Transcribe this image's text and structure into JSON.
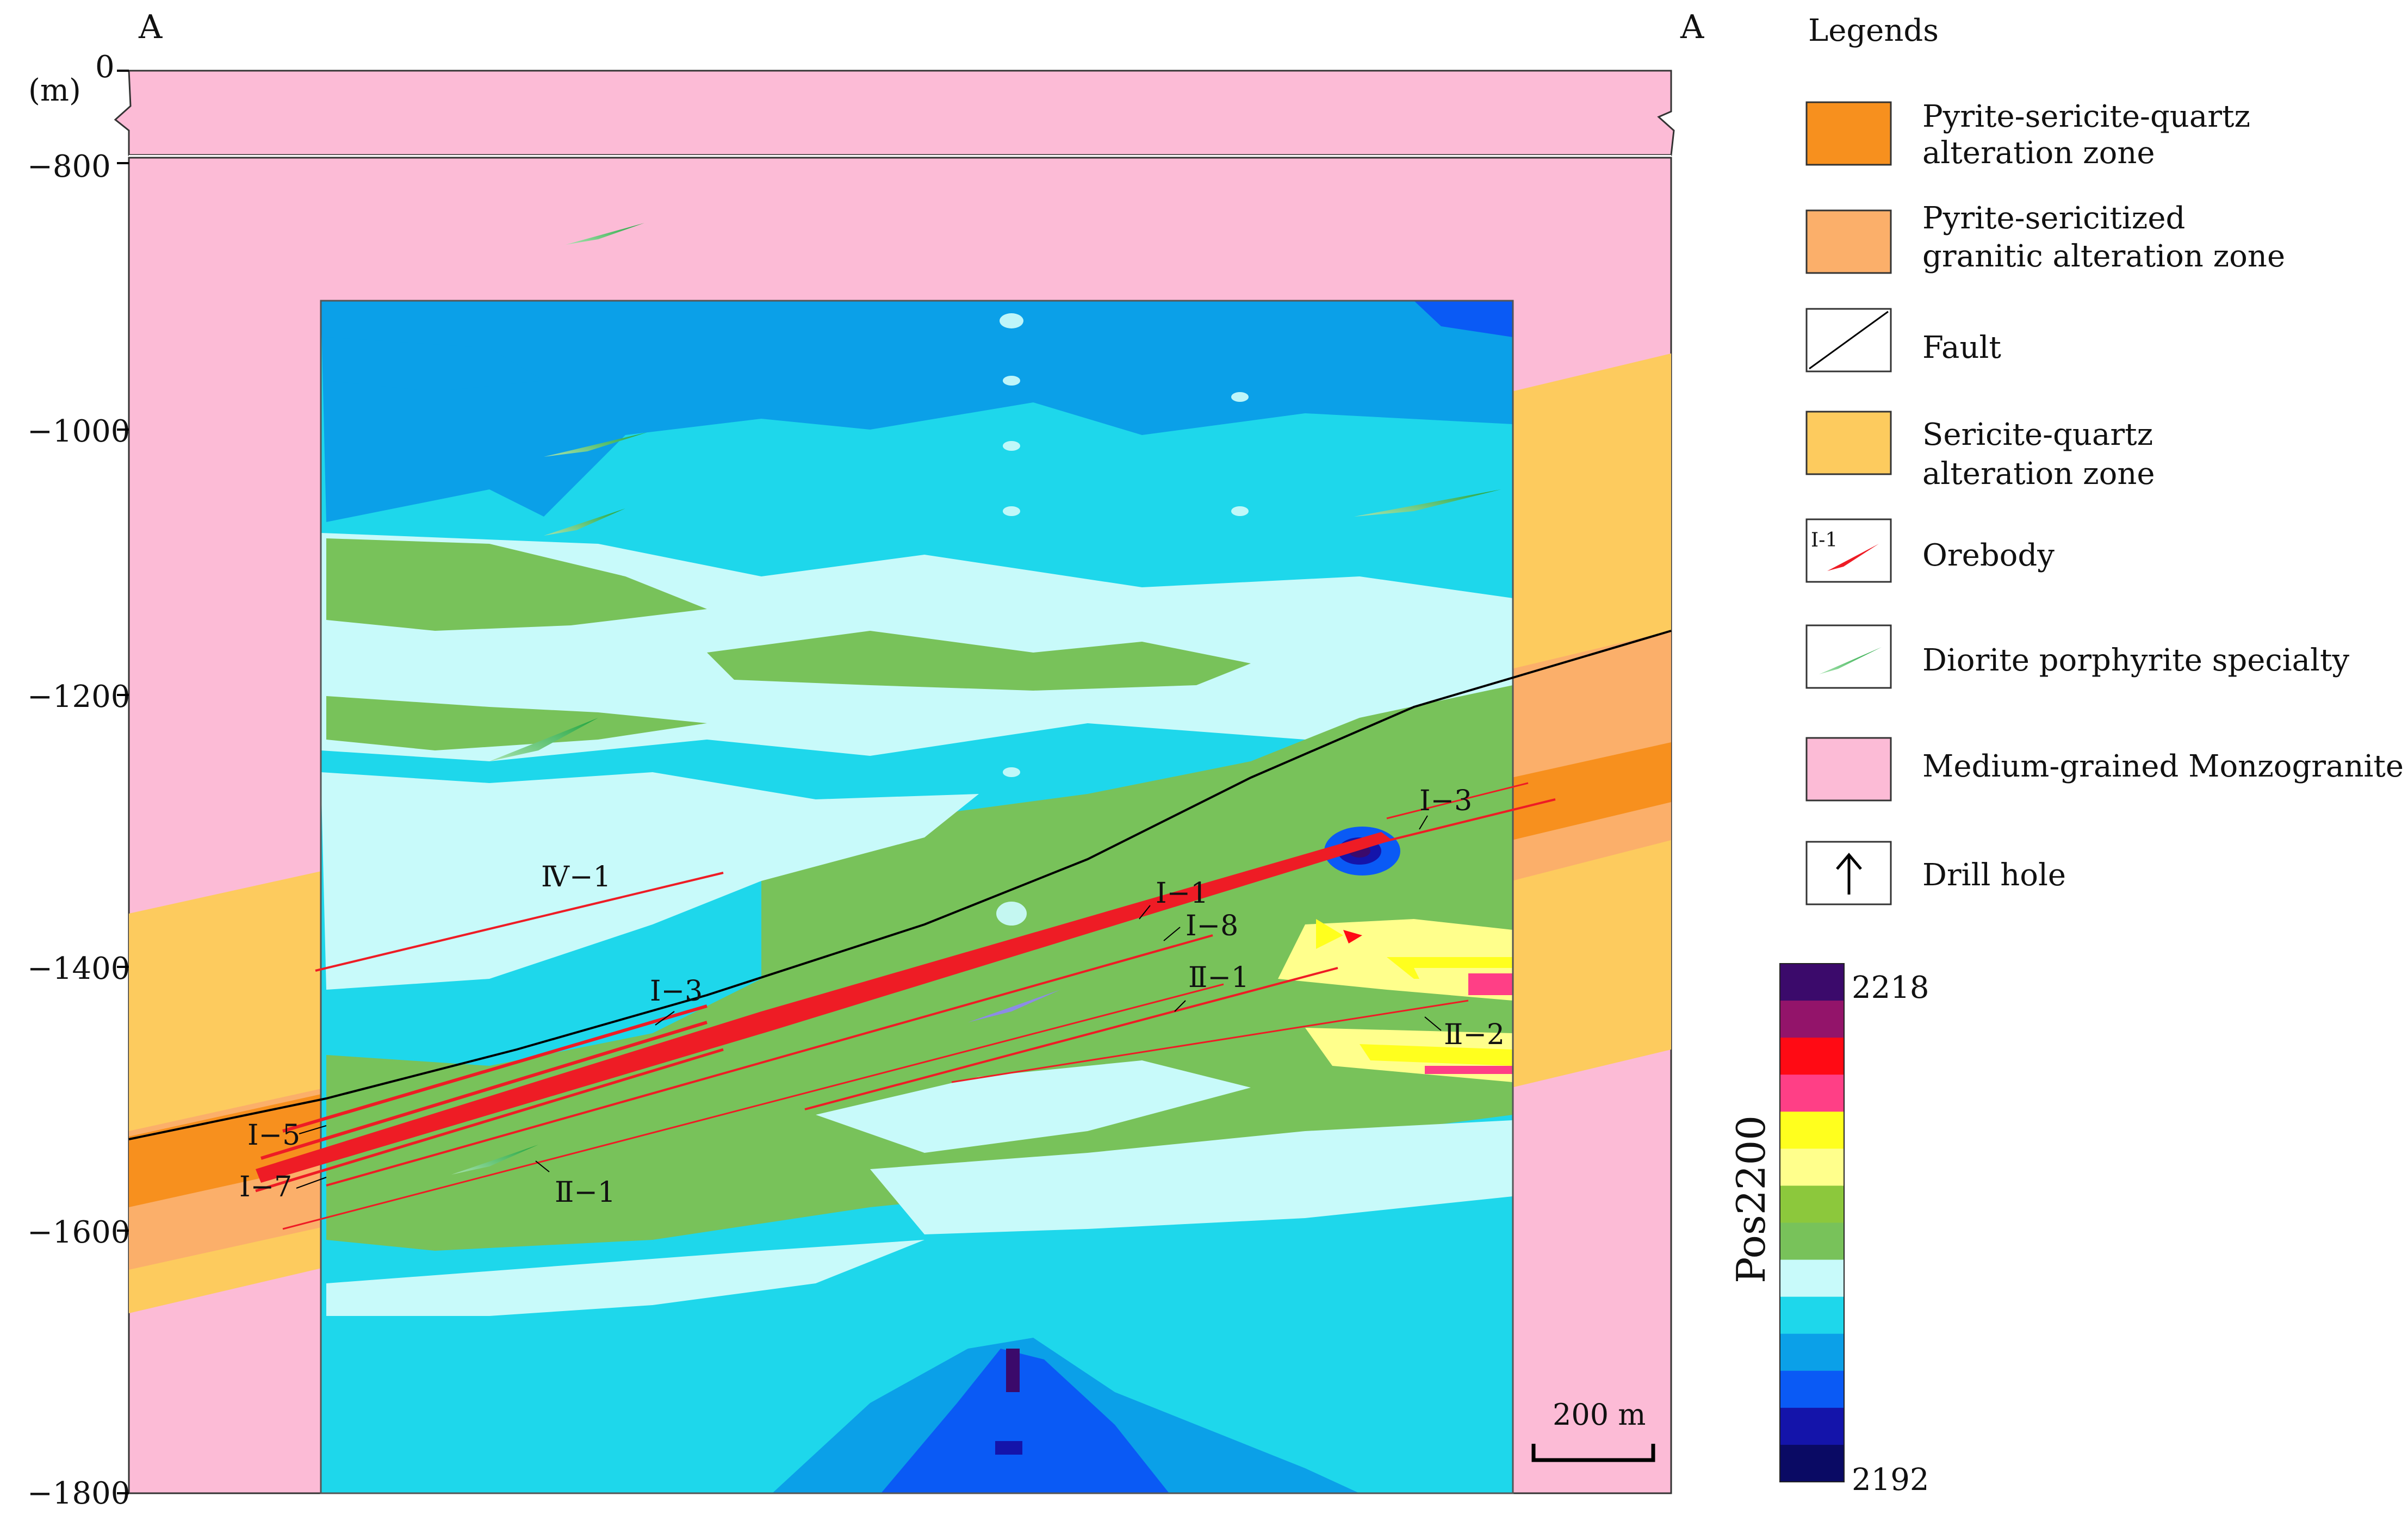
{
  "section": {
    "corner_left": "A",
    "corner_right": "A",
    "unit": "(m)",
    "y_ticks": [
      "0",
      "−800",
      "−1000",
      "−1200",
      "−1400",
      "−1600",
      "−1800"
    ],
    "scale_bar": "200 m"
  },
  "orebody_labels": {
    "iv1": "Ⅳ−1",
    "i3_left": "Ⅰ−3",
    "i3_right": "Ⅰ−3",
    "i1": "Ⅰ−1",
    "i8": "Ⅰ−8",
    "ii1_upper": "Ⅱ−1",
    "ii2": "Ⅱ−2",
    "i5": "Ⅰ−5",
    "i7": "Ⅰ−7",
    "ii1_lower": "Ⅱ−1"
  },
  "legend": {
    "title": "Legends",
    "items": [
      {
        "line1": "Pyrite-sericite-quartz",
        "line2": "alteration zone",
        "color": "#F7901E"
      },
      {
        "line1": "Pyrite-sericitized",
        "line2": "granitic alteration zone",
        "color": "#FBAF6A"
      },
      {
        "line1": "Fault",
        "line2": "",
        "color": "#ffffff"
      },
      {
        "line1": "Sericite-quartz",
        "line2": "alteration zone",
        "color": "#FDCB5E"
      },
      {
        "line1": "Orebody",
        "line2": "",
        "color": "#ffffff",
        "swatch_label": "I-1"
      },
      {
        "line1": "Diorite porphyrite specialty",
        "line2": "",
        "color": "#ffffff"
      },
      {
        "line1": "Medium-grained Monzogranite",
        "line2": "",
        "color": "#FCBBD6"
      },
      {
        "line1": "Drill hole",
        "line2": "",
        "color": "#ffffff"
      }
    ]
  },
  "colorbar": {
    "title": "Pos2200",
    "max_label": "2218",
    "min_label": "2192",
    "colors": [
      "#3B0A6B",
      "#93146A",
      "#FF0A14",
      "#FF3F86",
      "#FFFF1E",
      "#FFFF8C",
      "#8CC83C",
      "#78C25A",
      "#C8FAFA",
      "#1ED7EB",
      "#0BA0E8",
      "#0A5AF5",
      "#1414AA",
      "#0A0A64"
    ]
  },
  "colors": {
    "monzogranite": "#FCBBD6",
    "pyrite_sericite_quartz": "#F7901E",
    "pyrite_sericitized": "#FBAF6A",
    "sericite_quartz": "#FDCB5E",
    "orebody": "#EE1C25",
    "diorite": "#2DB34A",
    "fault": "#000000"
  }
}
